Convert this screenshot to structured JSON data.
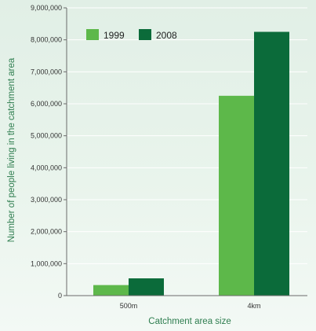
{
  "chart_data": {
    "type": "bar",
    "title": "",
    "xlabel": "Catchment area size",
    "ylabel": "Number of people living in the catchment area",
    "categories": [
      "500m",
      "4km"
    ],
    "series": [
      {
        "name": "1999",
        "values": [
          330000,
          6250000
        ]
      },
      {
        "name": "2008",
        "values": [
          540000,
          8250000
        ]
      }
    ],
    "ylim": [
      0,
      9000000
    ],
    "yticks": [
      0,
      1000000,
      2000000,
      3000000,
      4000000,
      5000000,
      6000000,
      7000000,
      8000000,
      9000000
    ],
    "ytick_labels": [
      "0",
      "1,000,000",
      "2,000,000",
      "3,000,000",
      "4,000,000",
      "5,000,000",
      "6,000,000",
      "7,000,000",
      "8,000,000",
      "9,000,000"
    ],
    "grid": true,
    "legend_position": "top-left",
    "colors": {
      "1999": "#5db84a",
      "2008": "#0b6b3a",
      "axis_title": "#2e7d4f",
      "grid": "#ffffff",
      "axis": "#6b6b6b"
    }
  }
}
